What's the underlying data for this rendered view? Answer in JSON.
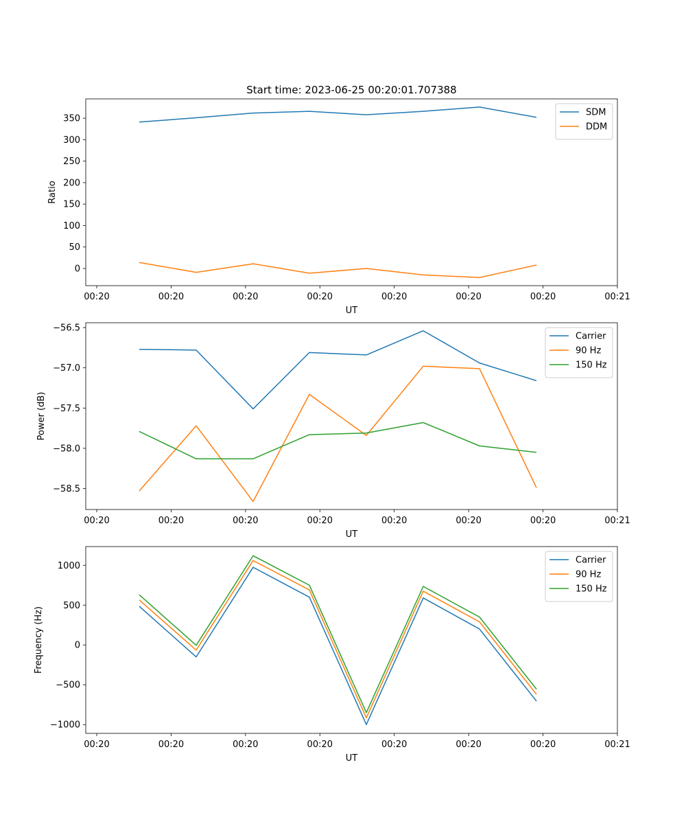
{
  "figure": {
    "title": "Start time: 2023-06-25 00:20:01.707388"
  },
  "chart_data": [
    {
      "type": "line",
      "xlabel": "UT",
      "ylabel": "Ratio",
      "x_ticks": [
        "00:20",
        "00:20",
        "00:20",
        "00:20",
        "00:20",
        "00:20",
        "00:20",
        "00:21"
      ],
      "ylim": [
        -40,
        395
      ],
      "y_ticks": [
        0,
        50,
        100,
        150,
        200,
        250,
        300,
        350
      ],
      "y_tick_labels": [
        "0",
        "50",
        "100",
        "150",
        "200",
        "250",
        "300",
        "350"
      ],
      "legend": "top-right",
      "series": [
        {
          "name": "SDM",
          "color": "#1f77b4",
          "values": [
            341,
            351,
            362,
            366,
            358,
            366,
            376,
            352
          ]
        },
        {
          "name": "DDM",
          "color": "#ff7f0e",
          "values": [
            14,
            -9,
            11,
            -11,
            0,
            -15,
            -21,
            8
          ]
        }
      ]
    },
    {
      "type": "line",
      "xlabel": "UT",
      "ylabel": "Power (dB)",
      "x_ticks": [
        "00:20",
        "00:20",
        "00:20",
        "00:20",
        "00:20",
        "00:20",
        "00:20",
        "00:21"
      ],
      "ylim": [
        -58.76,
        -56.44
      ],
      "y_ticks": [
        -58.5,
        -58.0,
        -57.5,
        -57.0,
        -56.5
      ],
      "y_tick_labels": [
        "−58.5",
        "−58.0",
        "−57.5",
        "−57.0",
        "−56.5"
      ],
      "legend": "top-right",
      "series": [
        {
          "name": "Carrier",
          "color": "#1f77b4",
          "values": [
            -56.77,
            -56.78,
            -57.51,
            -56.81,
            -56.84,
            -56.54,
            -56.94,
            -57.16
          ]
        },
        {
          "name": "90 Hz",
          "color": "#ff7f0e",
          "values": [
            -58.53,
            -57.72,
            -58.66,
            -57.33,
            -57.84,
            -56.98,
            -57.01,
            -58.49
          ]
        },
        {
          "name": "150 Hz",
          "color": "#2ca02c",
          "values": [
            -57.79,
            -58.13,
            -58.13,
            -57.83,
            -57.81,
            -57.68,
            -57.97,
            -58.05
          ]
        }
      ]
    },
    {
      "type": "line",
      "xlabel": "UT",
      "ylabel": "Frequency (Hz)",
      "x_ticks": [
        "00:20",
        "00:20",
        "00:20",
        "00:20",
        "00:20",
        "00:20",
        "00:20",
        "00:21"
      ],
      "ylim": [
        -1110,
        1235
      ],
      "y_ticks": [
        -1000,
        -500,
        0,
        500,
        1000
      ],
      "y_tick_labels": [
        "−1000",
        "−500",
        "0",
        "500",
        "1000"
      ],
      "legend": "top-right",
      "series": [
        {
          "name": "Carrier",
          "color": "#1f77b4",
          "values": [
            485,
            -150,
            975,
            600,
            -1000,
            590,
            200,
            -705
          ]
        },
        {
          "name": "90 Hz",
          "color": "#ff7f0e",
          "values": [
            565,
            -65,
            1060,
            690,
            -915,
            675,
            290,
            -620
          ]
        },
        {
          "name": "150 Hz",
          "color": "#2ca02c",
          "values": [
            630,
            -5,
            1120,
            750,
            -850,
            735,
            350,
            -555
          ]
        }
      ]
    }
  ]
}
